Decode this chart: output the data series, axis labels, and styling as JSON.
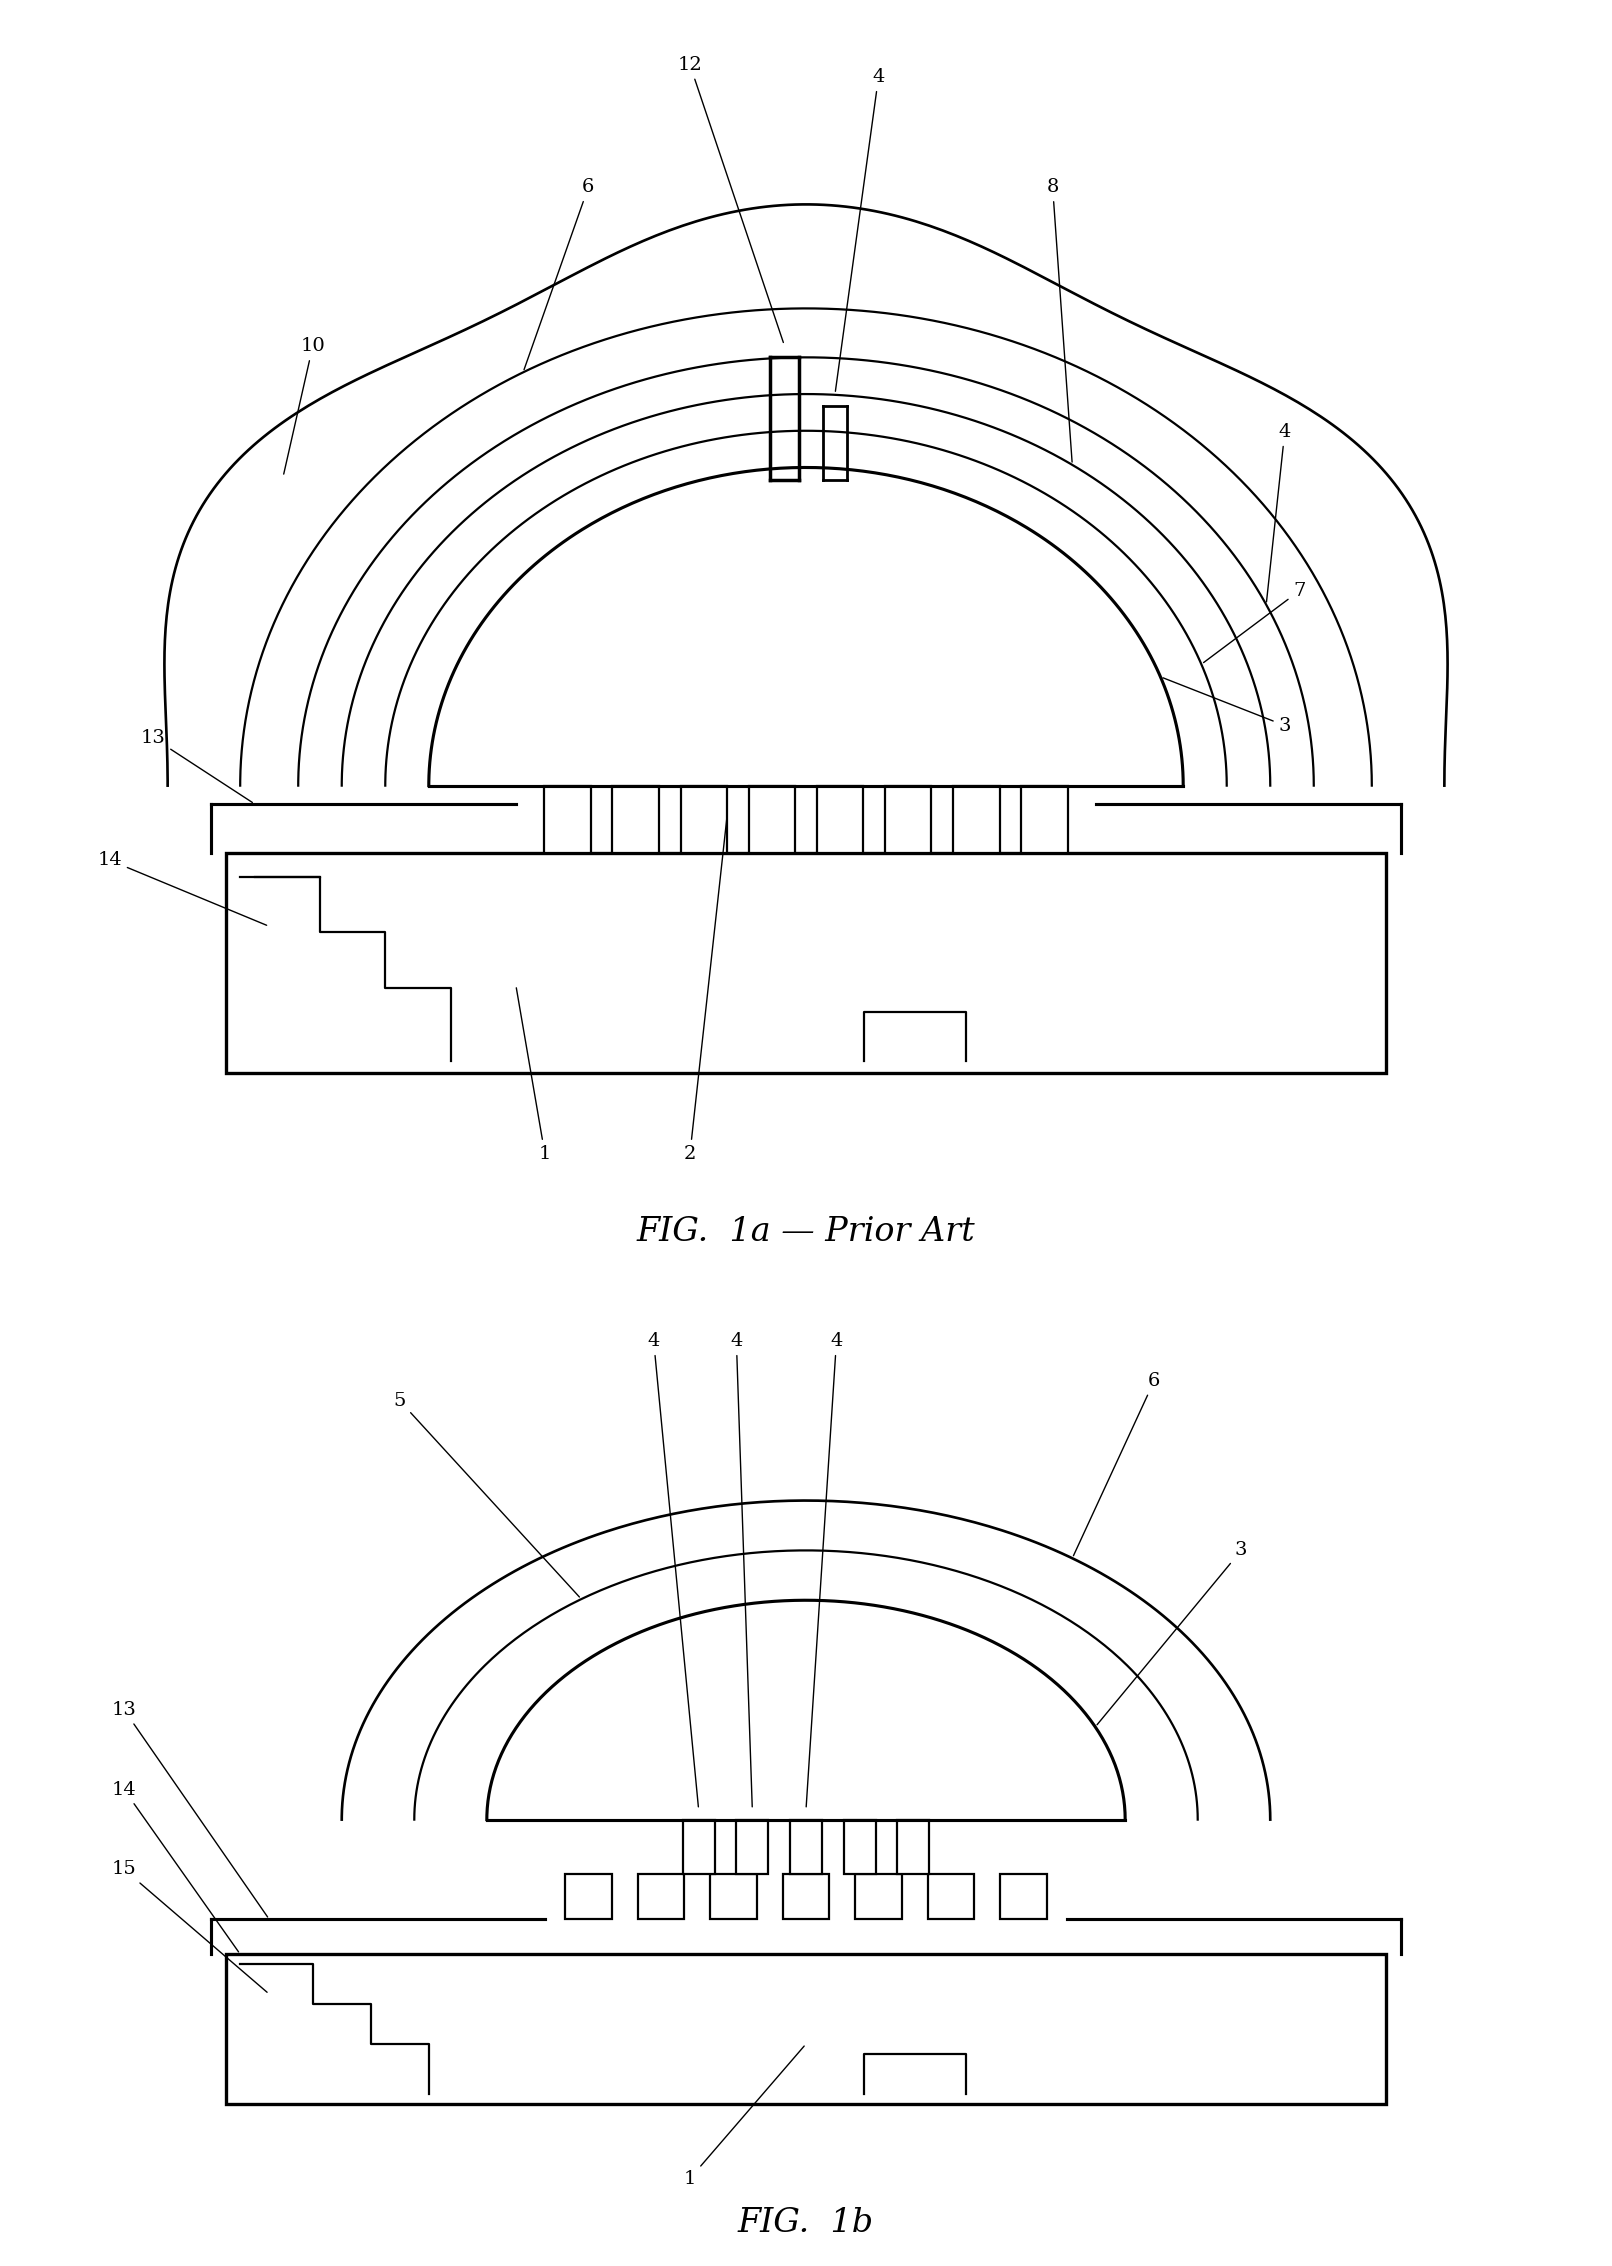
{
  "bg_color": "#ffffff",
  "line_color": "#000000",
  "fig_width": 16.12,
  "fig_height": 22.66,
  "lw": 1.6,
  "fs": 14
}
